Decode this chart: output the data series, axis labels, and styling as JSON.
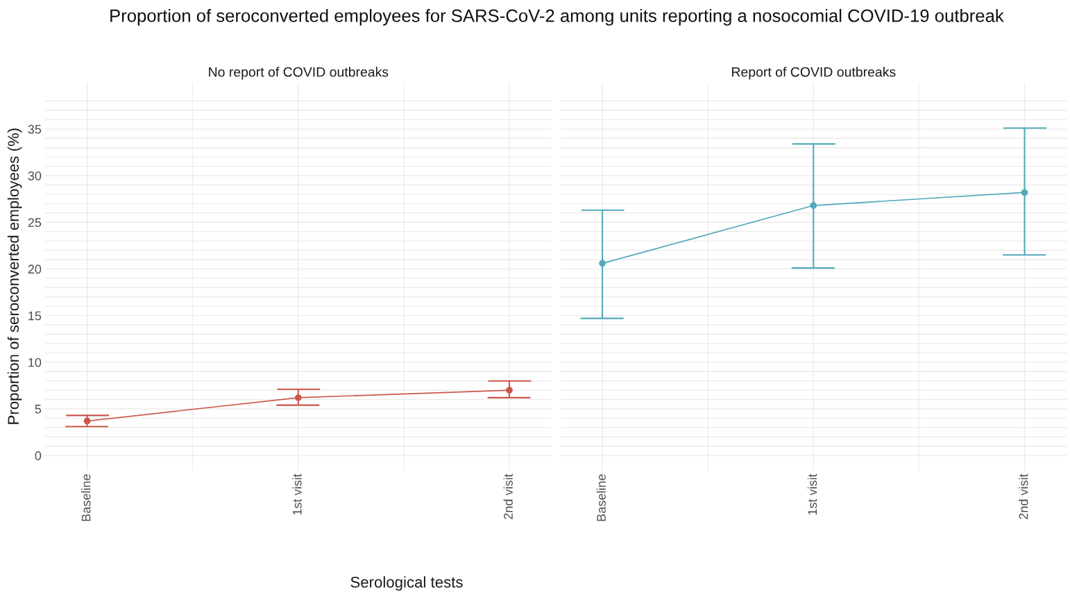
{
  "chart_data": [
    {
      "type": "line",
      "title": "Proportion of seroconverted employees for SARS-CoV-2 among units reporting a nosocomial COVID-19 outbreak",
      "subtitle": "No report of COVID outbreaks",
      "ylabel": "Proportion of seroconverted employees (%)",
      "annotations": [
        "Serological tests"
      ],
      "categories": [
        "Baseline",
        "1st visit",
        "2nd visit"
      ],
      "color": "#c9574a",
      "values": [
        3.7,
        6.2,
        7.0
      ],
      "errors": [
        [
          3.1,
          4.3
        ],
        [
          5.4,
          7.1
        ],
        [
          6.2,
          8.0
        ]
      ],
      "ylim": [
        -1.6,
        40
      ],
      "yticks": [
        0,
        {
          "value": 1,
          "label": null
        },
        {
          "value": 2,
          "label": null
        },
        {
          "value": 3,
          "label": null
        },
        {
          "value": 4,
          "label": null
        },
        5,
        {
          "value": 6,
          "label": null
        },
        {
          "value": 7,
          "label": null
        },
        {
          "value": 8,
          "label": null
        },
        {
          "value": 9,
          "label": null
        },
        10,
        {
          "value": 11,
          "label": null
        },
        {
          "value": 12,
          "label": null
        },
        {
          "value": 13,
          "label": null
        },
        {
          "value": 14,
          "label": null
        },
        15,
        {
          "value": 16,
          "label": null
        },
        {
          "value": 17,
          "label": null
        },
        {
          "value": 18,
          "label": null
        },
        {
          "value": 19,
          "label": null
        },
        20,
        {
          "value": 21,
          "label": null
        },
        {
          "value": 22,
          "label": null
        },
        {
          "value": 23,
          "label": null
        },
        {
          "value": 24,
          "label": null
        },
        25,
        {
          "value": 26,
          "label": null
        },
        {
          "value": 27,
          "label": null
        },
        {
          "value": 28,
          "label": null
        },
        {
          "value": 29,
          "label": null
        },
        30,
        {
          "value": 31,
          "label": null
        },
        {
          "value": 32,
          "label": null
        },
        {
          "value": 33,
          "label": null
        },
        {
          "value": 34,
          "label": null
        },
        35,
        {
          "value": 36,
          "label": null
        },
        {
          "value": 37,
          "label": null
        },
        {
          "value": 38,
          "label": null
        }
      ],
      "grid": true,
      "marker": "circle",
      "legend": false
    },
    {
      "type": "line",
      "subtitle": "Report of COVID outbreaks",
      "categories": [
        "Baseline",
        "1st visit",
        "2nd visit"
      ],
      "color": "#52a9ba",
      "values": [
        20.6,
        26.8,
        28.2
      ],
      "errors": [
        [
          14.7,
          26.3
        ],
        [
          20.1,
          33.4
        ],
        [
          21.5,
          35.1
        ]
      ],
      "ylim": [
        -1.6,
        40
      ],
      "yticks": [
        0,
        {
          "value": 1,
          "label": null
        },
        {
          "value": 2,
          "label": null
        },
        {
          "value": 3,
          "label": null
        },
        {
          "value": 4,
          "label": null
        },
        5,
        {
          "value": 6,
          "label": null
        },
        {
          "value": 7,
          "label": null
        },
        {
          "value": 8,
          "label": null
        },
        {
          "value": 9,
          "label": null
        },
        10,
        {
          "value": 11,
          "label": null
        },
        {
          "value": 12,
          "label": null
        },
        {
          "value": 13,
          "label": null
        },
        {
          "value": 14,
          "label": null
        },
        15,
        {
          "value": 16,
          "label": null
        },
        {
          "value": 17,
          "label": null
        },
        {
          "value": 18,
          "label": null
        },
        {
          "value": 19,
          "label": null
        },
        20,
        {
          "value": 21,
          "label": null
        },
        {
          "value": 22,
          "label": null
        },
        {
          "value": 23,
          "label": null
        },
        {
          "value": 24,
          "label": null
        },
        25,
        {
          "value": 26,
          "label": null
        },
        {
          "value": 27,
          "label": null
        },
        {
          "value": 28,
          "label": null
        },
        {
          "value": 29,
          "label": null
        },
        30,
        {
          "value": 31,
          "label": null
        },
        {
          "value": 32,
          "label": null
        },
        {
          "value": 33,
          "label": null
        },
        {
          "value": 34,
          "label": null
        },
        35,
        {
          "value": 36,
          "label": null
        },
        {
          "value": 37,
          "label": null
        },
        {
          "value": 38,
          "label": null
        }
      ],
      "tick_labels": "x",
      "grid": true,
      "marker": "circle",
      "legend": false
    }
  ]
}
